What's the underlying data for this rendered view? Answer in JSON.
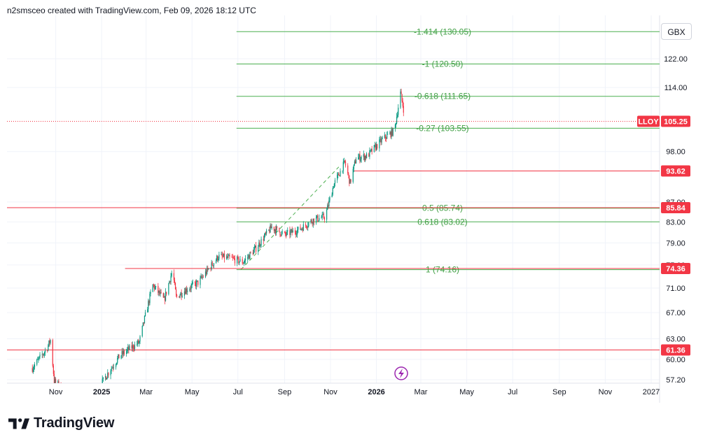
{
  "header": {
    "attribution": "n2smsceo created with TradingView.com, Feb 09, 2026 18:12 UTC"
  },
  "brand": {
    "name": "TradingView"
  },
  "currency_button": "GBX",
  "colors": {
    "fib_line": "#4caf50",
    "fib_text": "#43a047",
    "horizontal_line": "#f23645",
    "candle_up": "#089981",
    "candle_down": "#f23645",
    "grid": "#f0f3fa",
    "price_tag": "#f23645",
    "event_icon": "#9c27b0"
  },
  "chart_data": {
    "type": "candlestick",
    "symbol": "LLOY",
    "last_price": "105.25",
    "y_axis": {
      "ticks": [
        "122.00",
        "114.00",
        "98.00",
        "87.00",
        "83.00",
        "79.00",
        "75.00",
        "71.00",
        "67.00",
        "63.00",
        "60.00",
        "57.20"
      ],
      "tick_values": [
        122,
        114,
        98,
        87,
        83,
        79,
        75,
        71,
        67,
        63,
        60,
        57.2
      ]
    },
    "x_axis": {
      "labels": [
        "Nov",
        "2025",
        "Mar",
        "May",
        "Jul",
        "Sep",
        "Nov",
        "2026",
        "Mar",
        "May",
        "Jul",
        "Sep",
        "Nov",
        "2027"
      ],
      "bold": [
        "2025",
        "2026"
      ]
    },
    "fib_levels": [
      {
        "label": "-1.414 (130.05)",
        "value": 130.05
      },
      {
        "label": "-1 (120.50)",
        "value": 120.5
      },
      {
        "label": "-0.618 (111.65)",
        "value": 111.65
      },
      {
        "label": "-0.27 (103.55)",
        "value": 103.55
      },
      {
        "label": "0.5 (85.74)",
        "value": 85.74
      },
      {
        "label": "0.618 (83.02)",
        "value": 83.02
      },
      {
        "label": "1 (74.16)",
        "value": 74.16
      }
    ],
    "horizontal_levels": [
      {
        "label": "93.62",
        "value": 93.62
      },
      {
        "label": "85.84",
        "value": 85.84
      },
      {
        "label": "74.36",
        "value": 74.36
      },
      {
        "label": "61.36",
        "value": 61.36
      }
    ],
    "ohlc_anchors": [
      {
        "t": "2024-10-01",
        "c": 58.8
      },
      {
        "t": "2024-10-20",
        "c": 61.5
      },
      {
        "t": "2024-10-25",
        "c": 62.8
      },
      {
        "t": "2024-10-30",
        "c": 57.0
      },
      {
        "t": "2024-11-15",
        "c": 55.5
      },
      {
        "t": "2024-12-20",
        "c": 54.8
      },
      {
        "t": "2025-01-12",
        "c": 58.5
      },
      {
        "t": "2025-01-25",
        "c": 60.5
      },
      {
        "t": "2025-02-20",
        "c": 62.5
      },
      {
        "t": "2025-03-10",
        "c": 71.5
      },
      {
        "t": "2025-03-25",
        "c": 69.0
      },
      {
        "t": "2025-04-05",
        "c": 74.0
      },
      {
        "t": "2025-04-10",
        "c": 69.5
      },
      {
        "t": "2025-04-20",
        "c": 70.5
      },
      {
        "t": "2025-05-10",
        "c": 72.0
      },
      {
        "t": "2025-06-05",
        "c": 76.5
      },
      {
        "t": "2025-06-25",
        "c": 76.0
      },
      {
        "t": "2025-07-08",
        "c": 75.5
      },
      {
        "t": "2025-07-25",
        "c": 78.0
      },
      {
        "t": "2025-08-15",
        "c": 82.0
      },
      {
        "t": "2025-09-01",
        "c": 80.5
      },
      {
        "t": "2025-09-20",
        "c": 81.5
      },
      {
        "t": "2025-10-10",
        "c": 83.5
      },
      {
        "t": "2025-10-25",
        "c": 84.0
      },
      {
        "t": "2025-11-05",
        "c": 90.5
      },
      {
        "t": "2025-11-20",
        "c": 95.5
      },
      {
        "t": "2025-11-27",
        "c": 91.0
      },
      {
        "t": "2025-12-05",
        "c": 96.5
      },
      {
        "t": "2025-12-20",
        "c": 97.0
      },
      {
        "t": "2026-01-10",
        "c": 101.0
      },
      {
        "t": "2026-01-25",
        "c": 103.0
      },
      {
        "t": "2026-02-02",
        "c": 112.5
      },
      {
        "t": "2026-02-09",
        "c": 105.25
      }
    ]
  }
}
